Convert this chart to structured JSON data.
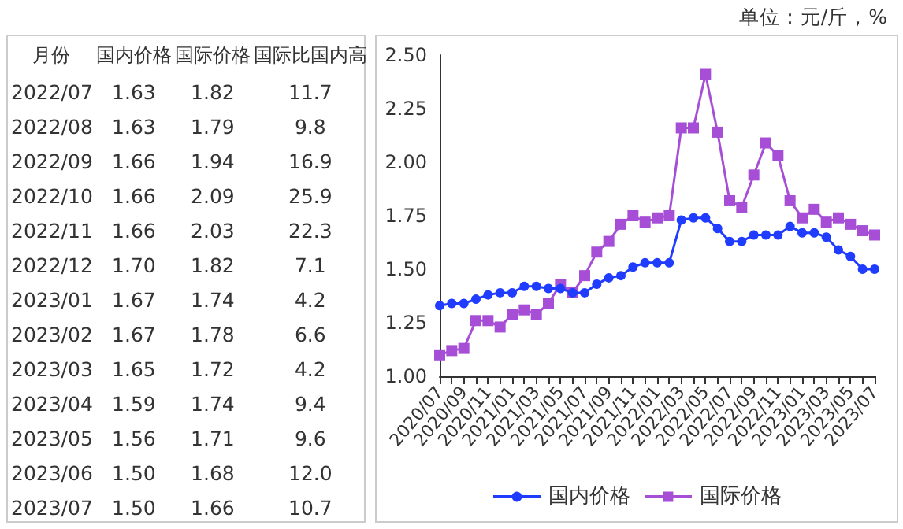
{
  "chart_data": [
    {
      "type": "other",
      "xlabel": "月份",
      "categories": [
        "2022/07",
        "2022/08",
        "2022/09",
        "2022/10",
        "2022/11",
        "2022/12",
        "2023/01",
        "2023/02",
        "2023/03",
        "2023/04",
        "2023/05",
        "2023/06",
        "2023/07"
      ],
      "series": [
        {
          "name": "国内价格",
          "values": [
            1.63,
            1.63,
            1.66,
            1.66,
            1.66,
            1.7,
            1.67,
            1.67,
            1.65,
            1.59,
            1.56,
            1.5,
            1.5
          ],
          "value_labels": [
            "1.63",
            "1.63",
            "1.66",
            "1.66",
            "1.66",
            "1.70",
            "1.67",
            "1.67",
            "1.65",
            "1.59",
            "1.56",
            "1.50",
            "1.50"
          ]
        },
        {
          "name": "国际价格",
          "values": [
            1.82,
            1.79,
            1.94,
            2.09,
            2.03,
            1.82,
            1.74,
            1.78,
            1.72,
            1.74,
            1.71,
            1.68,
            1.66
          ],
          "value_labels": [
            "1.82",
            "1.79",
            "1.94",
            "2.09",
            "2.03",
            "1.82",
            "1.74",
            "1.78",
            "1.72",
            "1.74",
            "1.71",
            "1.68",
            "1.66"
          ]
        },
        {
          "name": "国际比国内高",
          "values": [
            11.7,
            9.8,
            16.9,
            25.9,
            22.3,
            7.1,
            4.2,
            6.6,
            4.2,
            9.4,
            9.6,
            12,
            10.7
          ],
          "value_labels": [
            "11.7",
            "9.8",
            "16.9",
            "25.9",
            "22.3",
            "7.1",
            "4.2",
            "6.6",
            "4.2",
            "9.4",
            "9.6",
            "12.0",
            "10.7"
          ]
        }
      ]
    },
    {
      "type": "line",
      "annotations": [
        "单位：元/斤，%"
      ],
      "categories": [
        "2020/07",
        null,
        "2020/09",
        null,
        "2020/11",
        null,
        "2021/01",
        null,
        "2021/03",
        null,
        "2021/05",
        null,
        "2021/07",
        null,
        "2021/09",
        null,
        "2021/11",
        null,
        "2022/01",
        null,
        "2022/03",
        null,
        "2022/05",
        null,
        "2022/07",
        null,
        "2022/09",
        null,
        "2022/11",
        null,
        "2023/01",
        null,
        "2023/03",
        null,
        "2023/05",
        null,
        "2023/07"
      ],
      "series": [
        {
          "name": "国内价格",
          "color": "#1f3cff",
          "marker": "circle",
          "values": [
            1.33,
            1.34,
            1.34,
            1.36,
            1.38,
            1.39,
            1.39,
            1.42,
            1.42,
            1.41,
            1.41,
            1.39,
            1.39,
            1.43,
            1.46,
            1.47,
            1.51,
            1.53,
            1.53,
            1.53,
            1.73,
            1.74,
            1.74,
            1.69,
            1.63,
            1.63,
            1.66,
            1.66,
            1.66,
            1.7,
            1.67,
            1.67,
            1.65,
            1.59,
            1.56,
            1.5,
            1.5
          ]
        },
        {
          "name": "国际价格",
          "color": "#a64fd6",
          "marker": "square",
          "values": [
            1.1,
            1.12,
            1.13,
            1.26,
            1.26,
            1.23,
            1.29,
            1.31,
            1.29,
            1.34,
            1.43,
            1.39,
            1.47,
            1.58,
            1.63,
            1.71,
            1.75,
            1.72,
            1.74,
            1.75,
            2.16,
            2.16,
            2.41,
            2.14,
            1.82,
            1.79,
            1.94,
            2.09,
            2.03,
            1.82,
            1.74,
            1.78,
            1.72,
            1.74,
            1.71,
            1.68,
            1.66
          ]
        }
      ],
      "ylim": [
        1,
        2.5
      ],
      "yticks": [
        {
          "value": 1,
          "label": "1.00"
        },
        {
          "value": 1.25,
          "label": "1.25"
        },
        {
          "value": 1.5,
          "label": "1.50"
        },
        {
          "value": 1.75,
          "label": "1.75"
        },
        {
          "value": 2,
          "label": "2.00"
        },
        {
          "value": 2.25,
          "label": "2.25"
        },
        {
          "value": 2.5,
          "label": "2.50"
        }
      ],
      "grid": false,
      "legend": "bottom",
      "line_style": "solid"
    }
  ]
}
